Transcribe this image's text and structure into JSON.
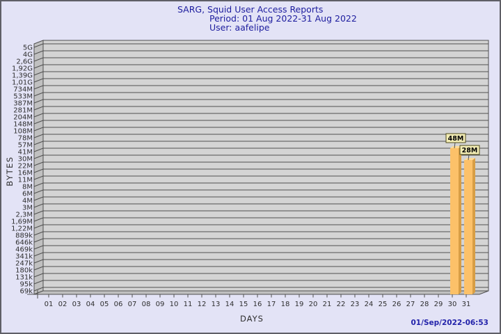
{
  "window": {
    "background_color": "#e3e3f6",
    "border_color": "#5f5f66"
  },
  "title": {
    "line1": "SARG, Squid User Access Reports",
    "line2": "Period: 01 Aug 2022-31 Aug 2022",
    "line3": "User: aafelipe",
    "color": "#1c1c9e"
  },
  "footer": {
    "timestamp": "01/Sep/2022-06:53",
    "color": "#2222aa"
  },
  "chart_data": {
    "type": "bar",
    "title": "SARG, Squid User Access Reports",
    "subtitle": "Period: 01 Aug 2022-31 Aug 2022",
    "user": "aafelipe",
    "xlabel": "DAYS",
    "ylabel": "BYTES",
    "scale": "logarithmic",
    "grid": true,
    "style": "3d-bars",
    "x_categories": [
      "01",
      "02",
      "03",
      "04",
      "05",
      "06",
      "07",
      "08",
      "09",
      "10",
      "11",
      "12",
      "13",
      "14",
      "15",
      "16",
      "17",
      "18",
      "19",
      "20",
      "21",
      "22",
      "23",
      "24",
      "25",
      "26",
      "27",
      "28",
      "29",
      "30",
      "31"
    ],
    "y_ticks": [
      {
        "label": "5G",
        "value": 5000000000
      },
      {
        "label": "4G",
        "value": 4000000000
      },
      {
        "label": "2,6G",
        "value": 2600000000
      },
      {
        "label": "1,92G",
        "value": 1920000000
      },
      {
        "label": "1,39G",
        "value": 1390000000
      },
      {
        "label": "1,01G",
        "value": 1010000000
      },
      {
        "label": "734M",
        "value": 734000000
      },
      {
        "label": "533M",
        "value": 533000000
      },
      {
        "label": "387M",
        "value": 387000000
      },
      {
        "label": "281M",
        "value": 281000000
      },
      {
        "label": "204M",
        "value": 204000000
      },
      {
        "label": "148M",
        "value": 148000000
      },
      {
        "label": "108M",
        "value": 108000000
      },
      {
        "label": "78M",
        "value": 78000000
      },
      {
        "label": "57M",
        "value": 57000000
      },
      {
        "label": "41M",
        "value": 41000000
      },
      {
        "label": "30M",
        "value": 30000000
      },
      {
        "label": "22M",
        "value": 22000000
      },
      {
        "label": "16M",
        "value": 16000000
      },
      {
        "label": "11M",
        "value": 11000000
      },
      {
        "label": "8M",
        "value": 8000000
      },
      {
        "label": "6M",
        "value": 6000000
      },
      {
        "label": "4M",
        "value": 4000000
      },
      {
        "label": "3M",
        "value": 3000000
      },
      {
        "label": "2,3M",
        "value": 2300000
      },
      {
        "label": "1,69M",
        "value": 1690000
      },
      {
        "label": "1,22M",
        "value": 1220000
      },
      {
        "label": "889k",
        "value": 889000
      },
      {
        "label": "646k",
        "value": 646000
      },
      {
        "label": "469k",
        "value": 469000
      },
      {
        "label": "341k",
        "value": 341000
      },
      {
        "label": "247k",
        "value": 247000
      },
      {
        "label": "180k",
        "value": 180000
      },
      {
        "label": "131k",
        "value": 131000
      },
      {
        "label": "95k",
        "value": 95000
      },
      {
        "label": "69k",
        "value": 69000
      }
    ],
    "bars": [
      {
        "day": "30",
        "value": 48000000,
        "value_label": "48M"
      },
      {
        "day": "31",
        "value": 28000000,
        "value_label": "28M"
      }
    ],
    "colors": {
      "plot_background": "#d4d4d4",
      "wall": "#c0c0c0",
      "grid_line": "#4f4f4f",
      "axis_text": "#2e2e2e",
      "bar_front": "#fcc169",
      "bar_side": "#d89e45",
      "bar_top": "#ffda93",
      "value_tag_background": "#f2ecb4",
      "value_tag_border": "#514d1e",
      "value_tag_text": "#000000"
    }
  }
}
